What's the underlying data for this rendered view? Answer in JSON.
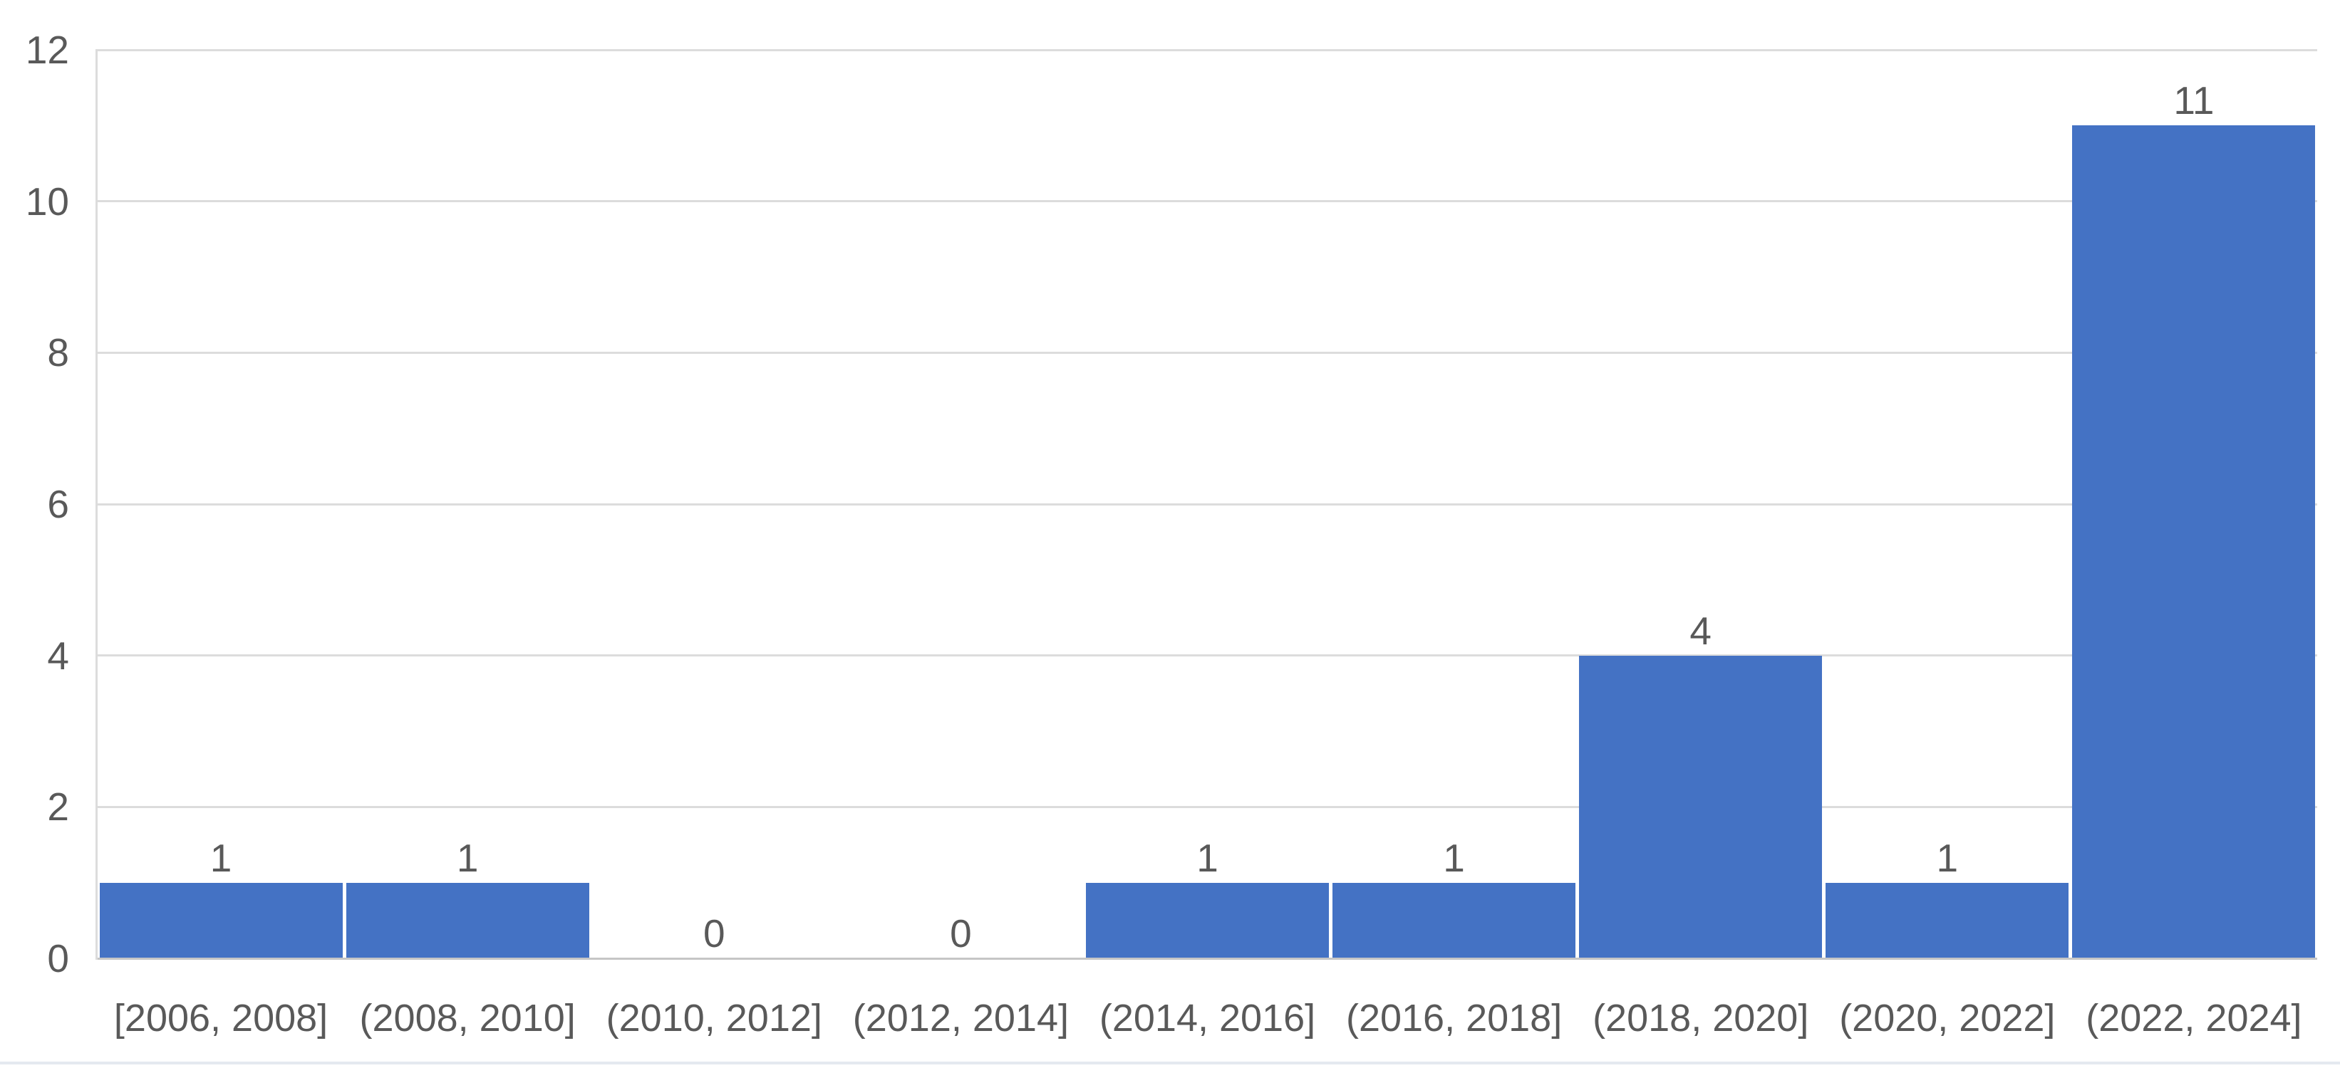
{
  "chart_data": {
    "type": "bar",
    "title": "",
    "xlabel": "",
    "ylabel": "",
    "categories": [
      "[2006, 2008]",
      "(2008, 2010]",
      "(2010, 2012]",
      "(2012, 2014]",
      "(2014, 2016]",
      "(2016, 2018]",
      "(2018, 2020]",
      "(2020, 2022]",
      "(2022, 2024]"
    ],
    "values": [
      1,
      1,
      0,
      0,
      1,
      1,
      4,
      1,
      11
    ],
    "data_labels": [
      "1",
      "1",
      "0",
      "0",
      "1",
      "1",
      "4",
      "1",
      "11"
    ],
    "ylim": [
      0,
      12
    ],
    "yticks": [
      0,
      2,
      4,
      6,
      8,
      10,
      12
    ],
    "grid": "horizontal",
    "legend": "none",
    "bar_style": "histogram-adjacent"
  },
  "colors": {
    "bar_fill": "#4472c4",
    "gridline": "#dcdcdc",
    "axis_line": "#c6c6c6",
    "text": "#595959",
    "background": "#ffffff",
    "bottom_rule": "#e4e9f0"
  }
}
